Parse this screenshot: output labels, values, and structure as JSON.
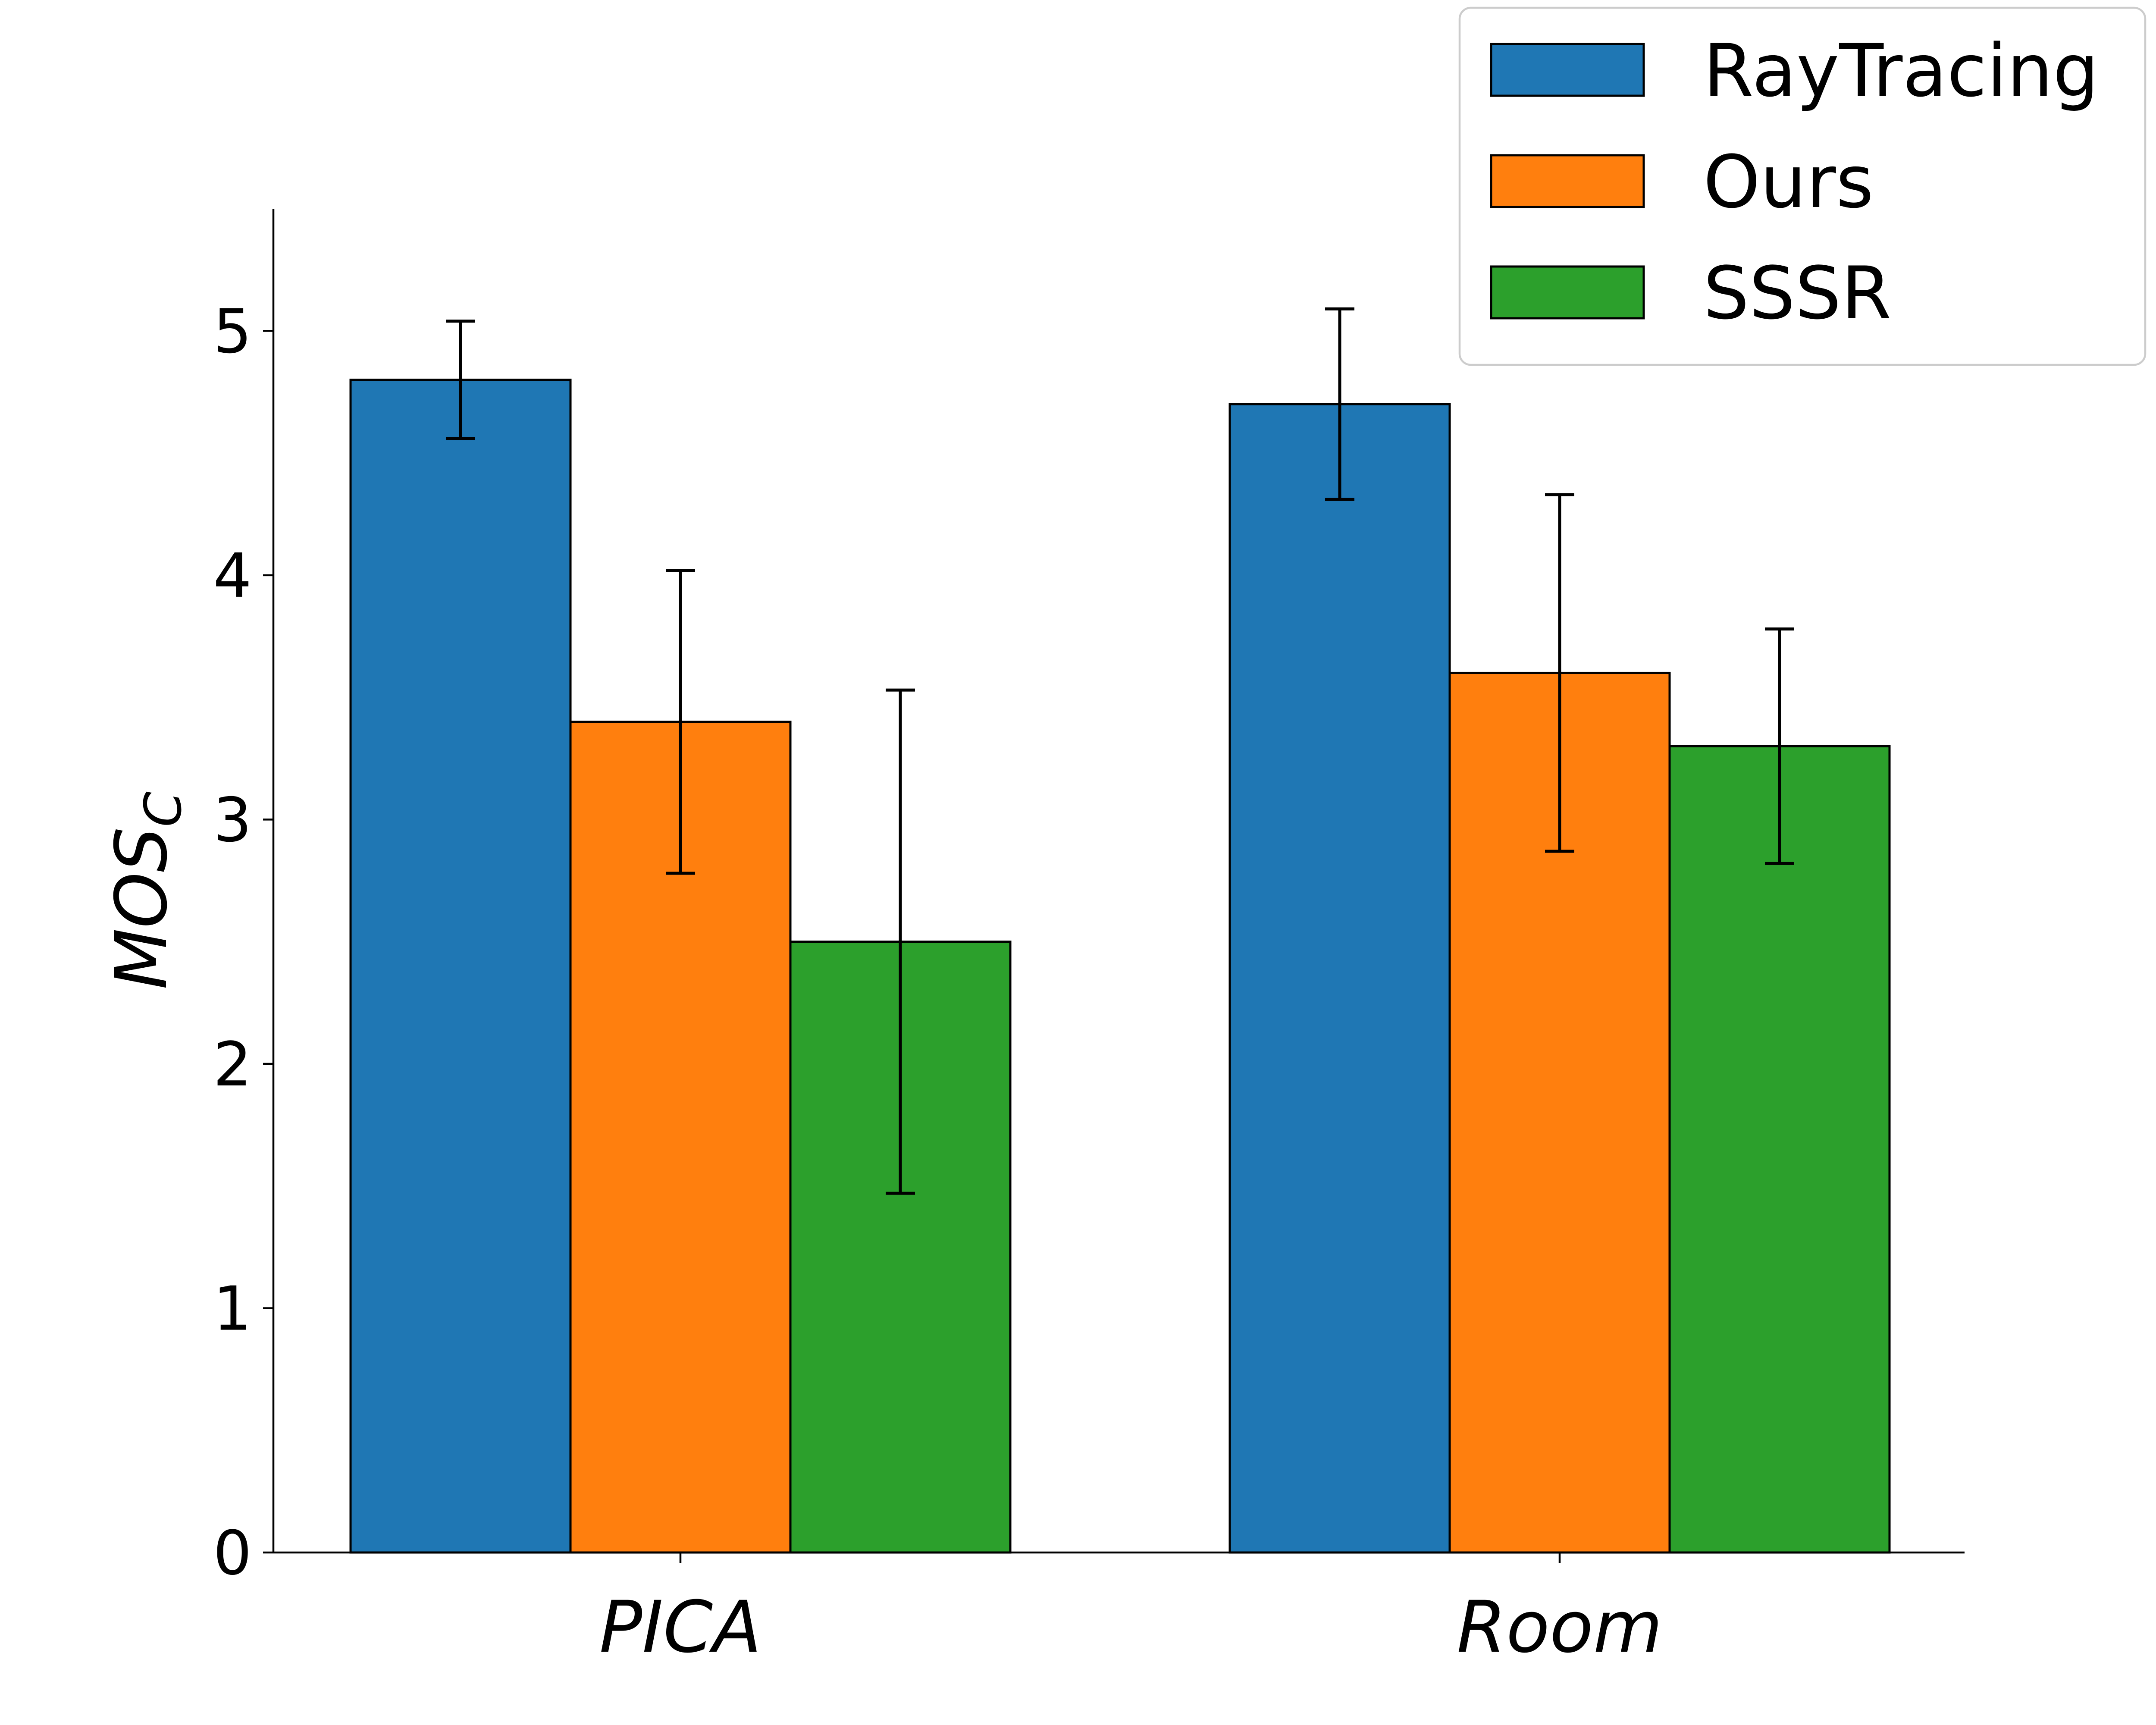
{
  "chart_data": {
    "type": "bar",
    "categories": [
      "PICA",
      "Room"
    ],
    "series": [
      {
        "name": "RayTracing",
        "values": [
          4.8,
          4.7
        ],
        "errors": [
          0.24,
          0.39
        ],
        "color": "#1f77b4"
      },
      {
        "name": "Ours",
        "values": [
          3.4,
          3.6
        ],
        "errors": [
          0.62,
          0.73
        ],
        "color": "#ff7f0e"
      },
      {
        "name": "SSSR",
        "values": [
          2.5,
          3.3
        ],
        "errors": [
          1.03,
          0.48
        ],
        "color": "#2ca02c"
      }
    ],
    "title": "",
    "xlabel": "",
    "ylabel": "MOS",
    "ylabel_subscript": "C",
    "ylim": [
      0,
      5.5
    ],
    "yticks": [
      0,
      1,
      2,
      3,
      4,
      5
    ],
    "ytick_labels": [
      "0",
      "1",
      "2",
      "3",
      "4",
      "5"
    ],
    "grid": false,
    "legend_position": "top-right",
    "spines": "left-bottom"
  }
}
